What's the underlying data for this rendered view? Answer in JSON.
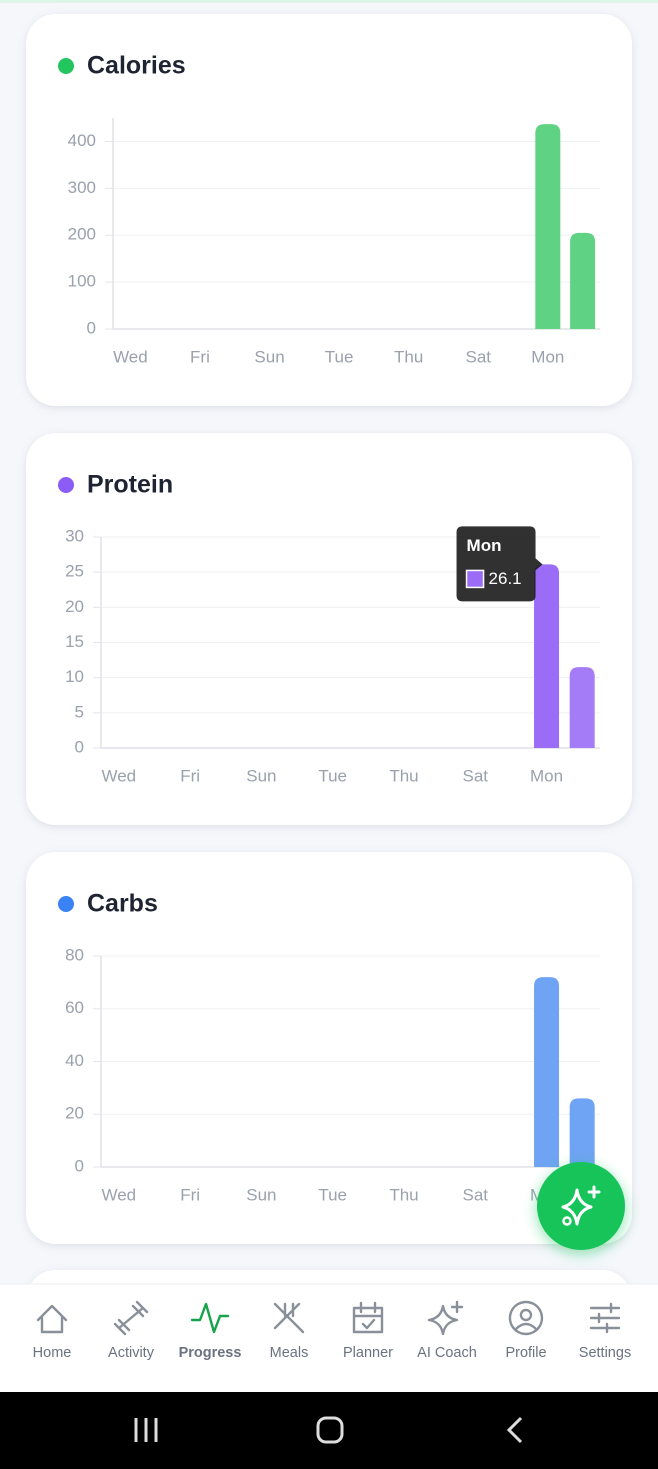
{
  "chart_data": [
    {
      "type": "bar",
      "title": "Calories",
      "marker_color": "#22c55e",
      "color": "#5fd383",
      "categories": [
        "Wed",
        null,
        "Fri",
        null,
        "Sun",
        null,
        "Tue",
        null,
        "Thu",
        null,
        "Sat",
        null,
        "Mon",
        null
      ],
      "values": [
        0,
        0,
        0,
        0,
        0,
        0,
        0,
        0,
        0,
        0,
        0,
        0,
        437,
        205
      ],
      "ylim": [
        0,
        450
      ],
      "yticks": [
        0,
        100,
        200,
        300,
        400
      ],
      "grid": true
    },
    {
      "type": "bar",
      "title": "Protein",
      "marker_color": "#8b5cf6",
      "color": "#a57cf7",
      "categories": [
        "Wed",
        null,
        "Fri",
        null,
        "Sun",
        null,
        "Tue",
        null,
        "Thu",
        null,
        "Sat",
        null,
        "Mon",
        null
      ],
      "values": [
        0,
        0,
        0,
        0,
        0,
        0,
        0,
        0,
        0,
        0,
        0,
        0,
        26.1,
        11.5
      ],
      "ylim": [
        0,
        30
      ],
      "yticks": [
        0,
        5,
        10,
        15,
        20,
        25,
        30
      ],
      "grid": true,
      "tooltip_index": 12,
      "tooltip_color": "#9b6cf6"
    },
    {
      "type": "bar",
      "title": "Carbs",
      "marker_color": "#3b82f6",
      "color": "#6fa3f3",
      "categories": [
        "Wed",
        null,
        "Fri",
        null,
        "Sun",
        null,
        "Tue",
        null,
        "Thu",
        null,
        "Sat",
        null,
        "Mon",
        null
      ],
      "values": [
        0,
        0,
        0,
        0,
        0,
        0,
        0,
        0,
        0,
        0,
        0,
        0,
        72,
        26
      ],
      "ylim": [
        0,
        80
      ],
      "yticks": [
        0,
        20,
        40,
        60,
        80
      ],
      "grid": true
    }
  ],
  "nav": {
    "items": [
      "Home",
      "Activity",
      "Progress",
      "Meals",
      "Planner",
      "AI Coach",
      "Profile",
      "Settings"
    ],
    "active": 2
  }
}
